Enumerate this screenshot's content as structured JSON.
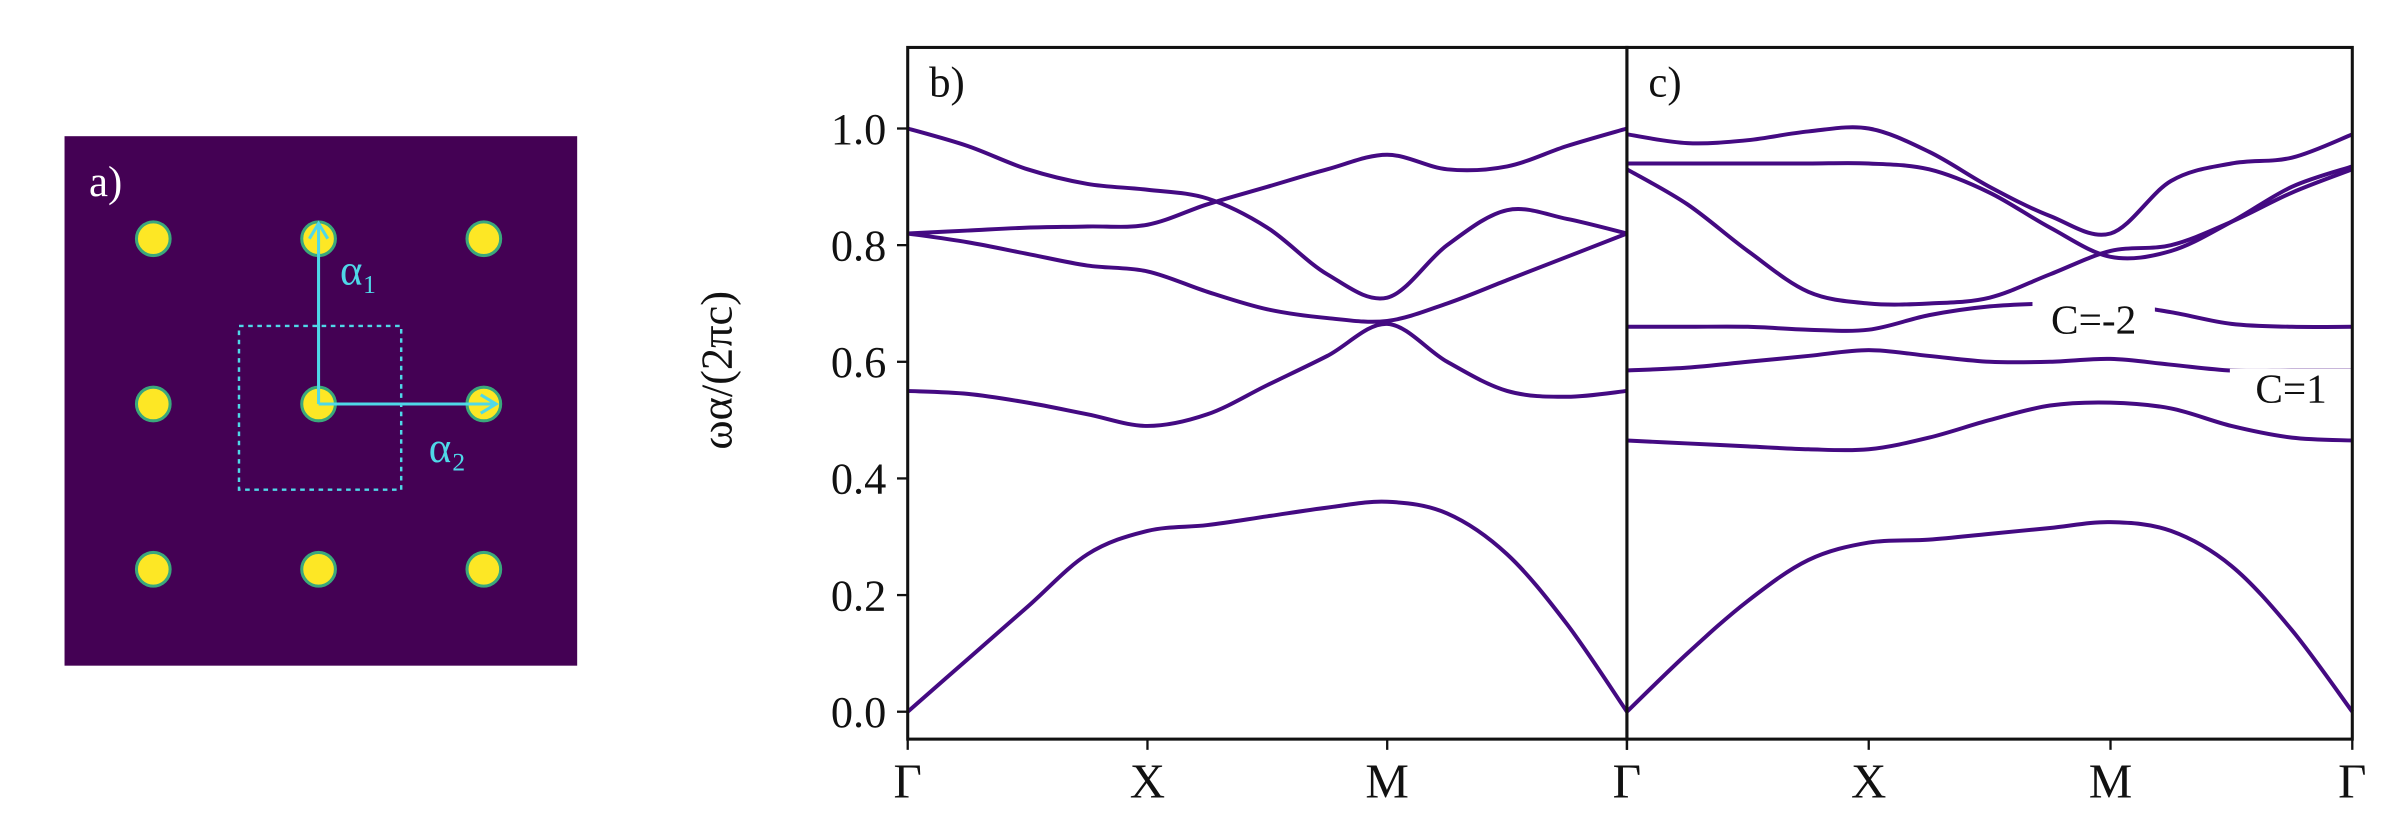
{
  "panel_a": {
    "label": "a)",
    "vector_1": "α₁",
    "vector_2": "α₂"
  },
  "chart_data": [
    {
      "type": "line",
      "panel_label": "b)",
      "ylabel": "ωα/(2πc)",
      "categories": [
        "Γ",
        null,
        null,
        null,
        "X",
        null,
        null,
        null,
        "M",
        null,
        null,
        null,
        "Γ"
      ],
      "ylim": [
        -0.047,
        1.139
      ],
      "yticks": [
        {
          "value": 0,
          "label": "0.0"
        },
        0.2,
        0.4,
        0.6,
        0.8,
        {
          "value": 1,
          "label": "1.0"
        }
      ],
      "series": [
        {
          "color": "#440a82",
          "values": [
            0,
            0.09,
            0.18,
            0.27,
            0.31,
            0.32,
            0.335,
            0.35,
            0.36,
            0.34,
            0.27,
            0.15,
            0
          ]
        },
        {
          "color": "#440a82",
          "values": [
            0.55,
            0.545,
            0.53,
            0.51,
            0.49,
            0.51,
            0.56,
            0.61,
            0.665,
            0.6,
            0.55,
            0.54,
            0.55
          ]
        },
        {
          "color": "#440a82",
          "values": [
            0.82,
            0.805,
            0.785,
            0.765,
            0.755,
            0.72,
            0.69,
            0.675,
            0.67,
            0.7,
            0.74,
            0.78,
            0.82
          ]
        },
        {
          "color": "#440a82",
          "values": [
            0.82,
            0.825,
            0.83,
            0.832,
            0.835,
            0.87,
            0.9,
            0.93,
            0.955,
            0.93,
            0.935,
            0.97,
            1.0
          ]
        },
        {
          "color": "#440a82",
          "values": [
            1.0,
            0.97,
            0.93,
            0.905,
            0.895,
            0.88,
            0.83,
            0.75,
            0.71,
            0.8,
            0.86,
            0.845,
            0.82
          ]
        }
      ]
    },
    {
      "type": "line",
      "panel_label": "c)",
      "categories": [
        "Γ",
        null,
        null,
        null,
        "X",
        null,
        null,
        null,
        "M",
        null,
        null,
        null,
        "Γ"
      ],
      "ylim": [
        -0.047,
        1.139
      ],
      "series": [
        {
          "color": "#440a82",
          "values": [
            0,
            0.1,
            0.19,
            0.26,
            0.29,
            0.295,
            0.305,
            0.315,
            0.325,
            0.31,
            0.25,
            0.14,
            0
          ]
        },
        {
          "color": "#440a82",
          "values": [
            0.465,
            0.46,
            0.455,
            0.45,
            0.45,
            0.47,
            0.5,
            0.525,
            0.53,
            0.52,
            0.49,
            0.47,
            0.465
          ]
        },
        {
          "color": "#440a82",
          "values": [
            0.585,
            0.59,
            0.6,
            0.61,
            0.62,
            0.61,
            0.6,
            0.6,
            0.605,
            0.595,
            0.585,
            0.585,
            0.585
          ]
        },
        {
          "color": "#440a82",
          "values": [
            0.66,
            0.66,
            0.66,
            0.655,
            0.655,
            0.68,
            0.695,
            0.7,
            0.7,
            0.685,
            0.665,
            0.66,
            0.66
          ]
        },
        {
          "color": "#440a82",
          "values": [
            0.93,
            0.87,
            0.79,
            0.72,
            0.7,
            0.7,
            0.71,
            0.75,
            0.79,
            0.8,
            0.84,
            0.89,
            0.93
          ]
        },
        {
          "color": "#440a82",
          "values": [
            0.94,
            0.94,
            0.94,
            0.94,
            0.94,
            0.93,
            0.89,
            0.83,
            0.78,
            0.79,
            0.84,
            0.9,
            0.935
          ]
        },
        {
          "color": "#440a82",
          "values": [
            0.99,
            0.975,
            0.98,
            0.995,
            1.0,
            0.96,
            0.9,
            0.85,
            0.82,
            0.91,
            0.94,
            0.95,
            0.99
          ]
        }
      ],
      "annotations": [
        "C=-2",
        "C=1"
      ]
    }
  ]
}
